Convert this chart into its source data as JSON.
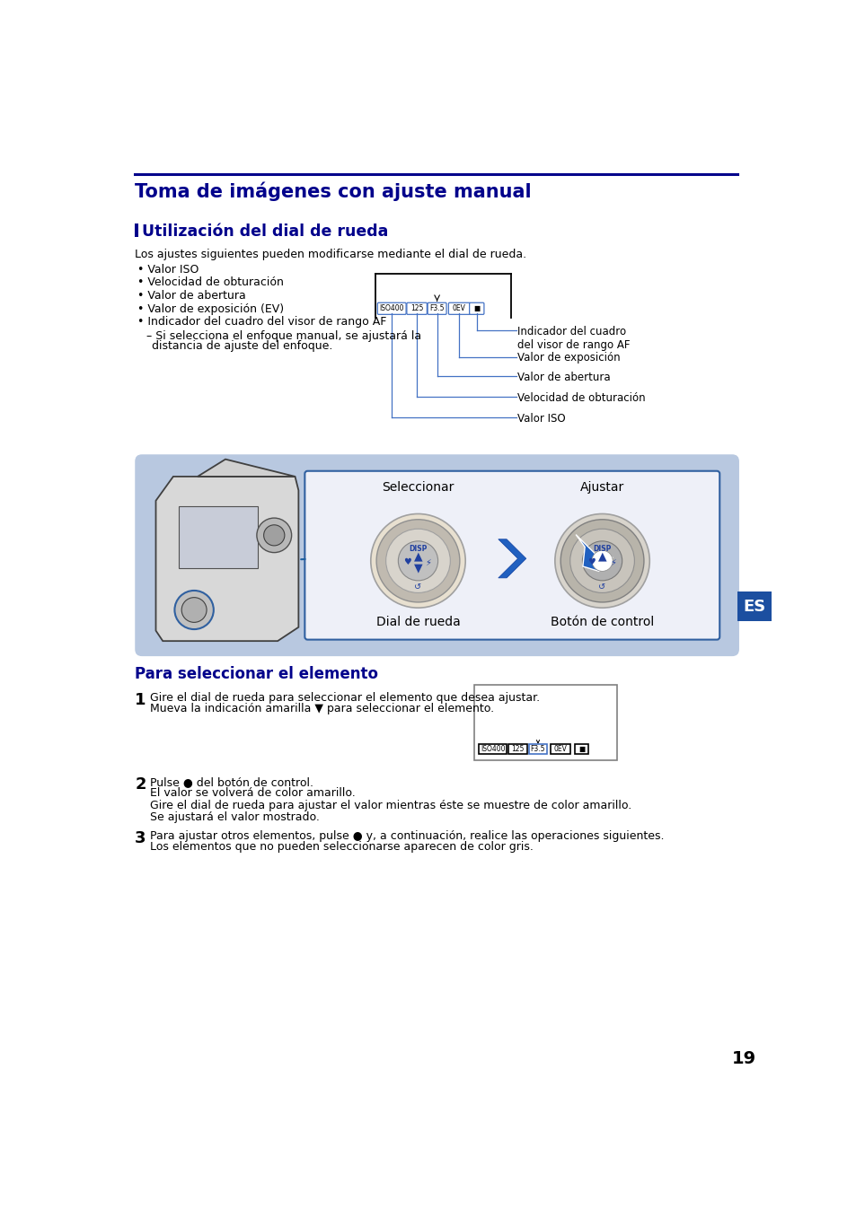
{
  "title": "Toma de imágenes con ajuste manual",
  "title_color": "#00008B",
  "page_bg": "#ffffff",
  "section1_heading": "Utilización del dial de rueda",
  "heading_color": "#00008B",
  "intro_text": "Los ajustes siguientes pueden modificarse mediante el dial de rueda.",
  "bullet_items": [
    "Valor ISO",
    "Velocidad de obturación",
    "Valor de abertura",
    "Valor de exposición (EV)",
    "Indicador del cuadro del visor de rango AF"
  ],
  "sub_bullet_line1": "Si selecciona el enfoque manual, se ajustará la",
  "sub_bullet_line2": "distancia de ajuste del enfoque.",
  "indicator_items": [
    "ISO400",
    "125",
    "F3.5",
    "0EV",
    "■"
  ],
  "label_texts": [
    "Valor ISO",
    "Velocidad de obturación",
    "Valor de abertura",
    "Valor de exposición",
    "Indicador del cuadro\ndel visor de rango AF"
  ],
  "line_color": "#4472c4",
  "diagram_outer_bg": "#b8c8e0",
  "diagram_outer_border": "#8090b0",
  "inner_box_bg": "#eef0f8",
  "inner_box_border": "#3060a0",
  "seleccionar_label": "Seleccionar",
  "ajustar_label": "Ajustar",
  "dial_label": "Dial de rueda",
  "boton_label": "Botón de control",
  "es_box_color": "#1c4fa0",
  "section2_heading": "Para seleccionar el elemento",
  "step1_line1": "Gire el dial de rueda para seleccionar el elemento que desea ajustar.",
  "step1_line2": "Mueva la indicación amarilla ▼ para seleccionar el elemento.",
  "step2_line1": "Pulse ● del botón de control.",
  "step2_line2": "El valor se volverá de color amarillo.",
  "step2_line3": "Gire el dial de rueda para ajustar el valor mientras éste se muestre de color amarillo.",
  "step2_line4": "Se ajustará el valor mostrado.",
  "step3_line1": "Para ajustar otros elementos, pulse ● y, a continuación, realice las operaciones siguientes.",
  "step3_line2": "Los elementos que no pueden seleccionarse aparecen de color gris.",
  "page_number": "19",
  "text_color": "#000000"
}
